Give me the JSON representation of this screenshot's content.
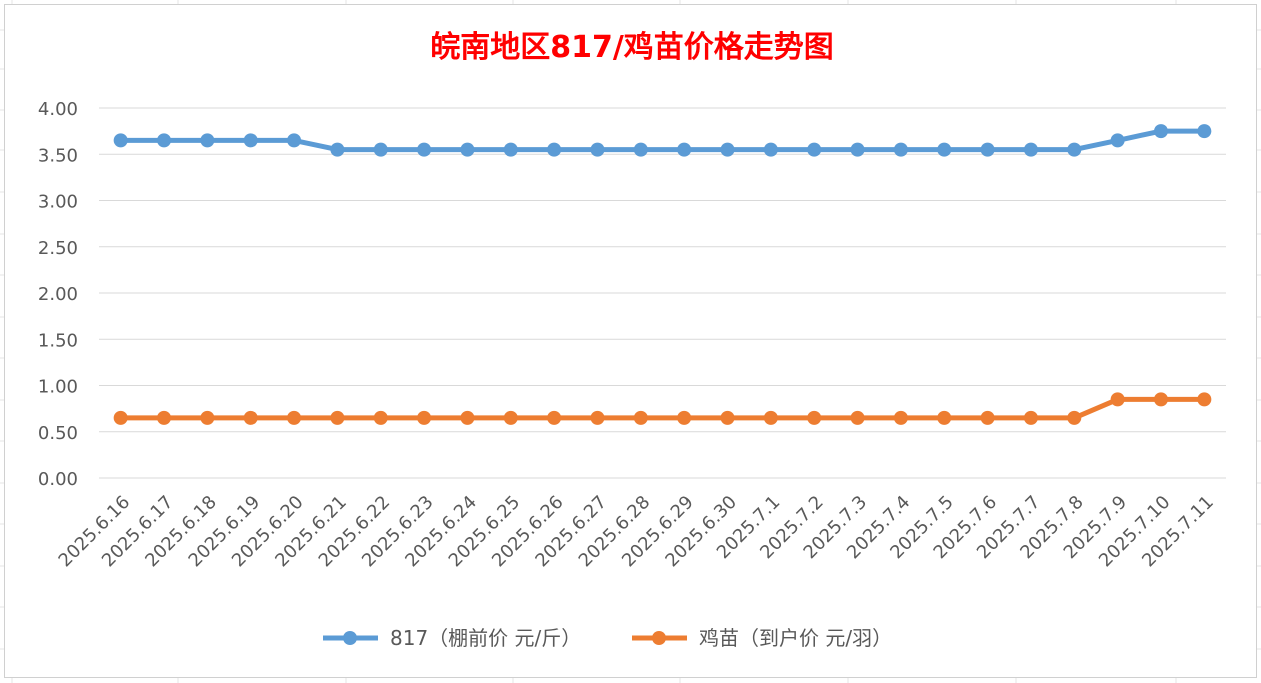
{
  "chart_data": {
    "type": "line",
    "title": "皖南地区817/鸡苗价格走势图",
    "categories": [
      "2025.6.16",
      "2025.6.17",
      "2025.6.18",
      "2025.6.19",
      "2025.6.20",
      "2025.6.21",
      "2025.6.22",
      "2025.6.23",
      "2025.6.24",
      "2025.6.25",
      "2025.6.26",
      "2025.6.27",
      "2025.6.28",
      "2025.6.29",
      "2025.6.30",
      "2025.7.1",
      "2025.7.2",
      "2025.7.3",
      "2025.7.4",
      "2025.7.5",
      "2025.7.6",
      "2025.7.7",
      "2025.7.8",
      "2025.7.9",
      "2025.7.10",
      "2025.7.11"
    ],
    "series": [
      {
        "name": "817（棚前价 元/斤）",
        "color": "#5b9bd5",
        "values": [
          3.65,
          3.65,
          3.65,
          3.65,
          3.65,
          3.55,
          3.55,
          3.55,
          3.55,
          3.55,
          3.55,
          3.55,
          3.55,
          3.55,
          3.55,
          3.55,
          3.55,
          3.55,
          3.55,
          3.55,
          3.55,
          3.55,
          3.55,
          3.65,
          3.75,
          3.75
        ]
      },
      {
        "name": "鸡苗（到户价 元/羽）",
        "color": "#ed7d31",
        "values": [
          0.65,
          0.65,
          0.65,
          0.65,
          0.65,
          0.65,
          0.65,
          0.65,
          0.65,
          0.65,
          0.65,
          0.65,
          0.65,
          0.65,
          0.65,
          0.65,
          0.65,
          0.65,
          0.65,
          0.65,
          0.65,
          0.65,
          0.65,
          0.85,
          0.85,
          0.85
        ]
      }
    ],
    "ylim": [
      0,
      4
    ],
    "yticks": [
      "0.00",
      "0.50",
      "1.00",
      "1.50",
      "2.00",
      "2.50",
      "3.00",
      "3.50",
      "4.00"
    ],
    "grid": true,
    "legend_position": "bottom",
    "title_color": "#ff0000"
  }
}
